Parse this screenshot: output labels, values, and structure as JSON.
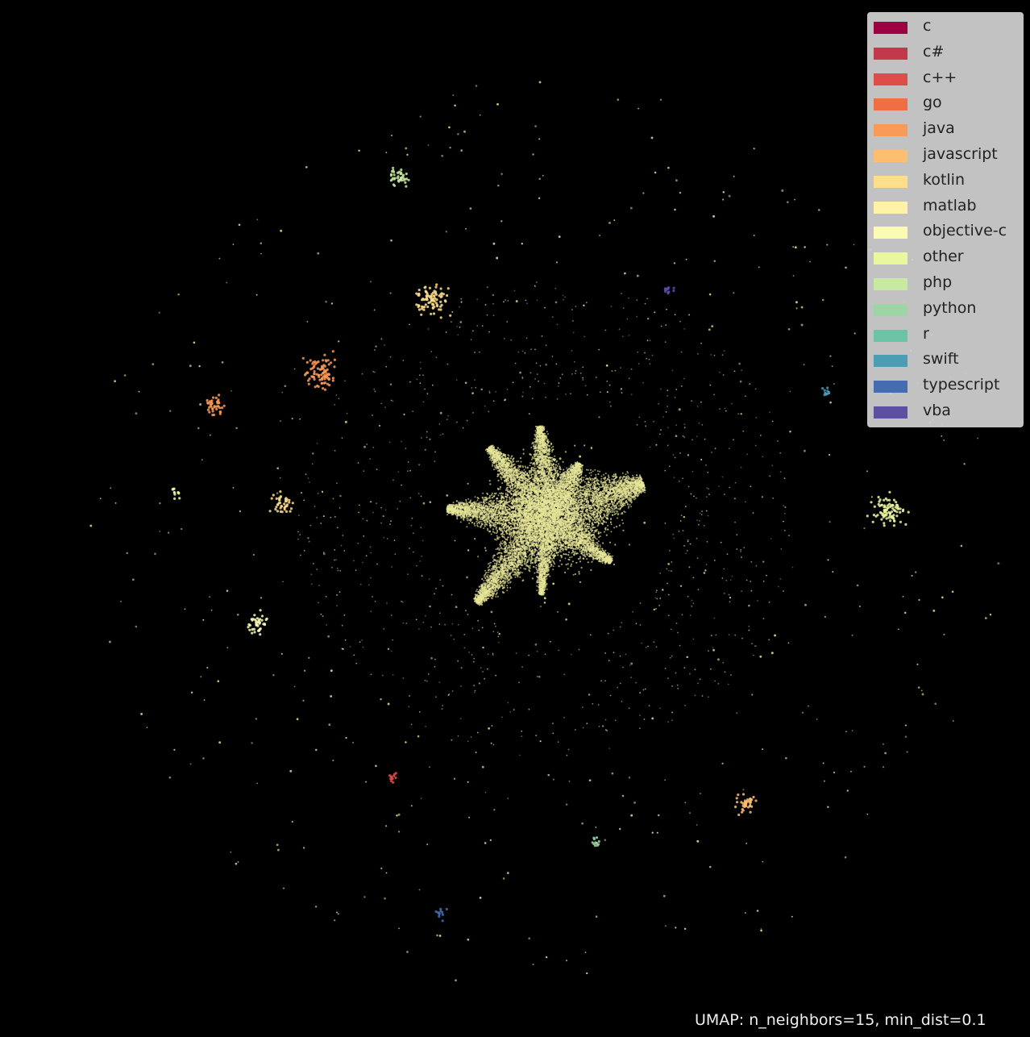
{
  "chart_data": {
    "type": "scatter",
    "projection": "UMAP",
    "annotation": "UMAP: n_neighbors=15, min_dist=0.1",
    "background_color": "#000000",
    "axes_visible": false,
    "grid": false,
    "legend_position": "top-right",
    "legend": [
      {
        "label": "c",
        "color": "#9e0142"
      },
      {
        "label": "c#",
        "color": "#c2394b"
      },
      {
        "label": "c++",
        "color": "#de4d4a"
      },
      {
        "label": "go",
        "color": "#f16e43"
      },
      {
        "label": "java",
        "color": "#f99b58"
      },
      {
        "label": "javascript",
        "color": "#fdbe70"
      },
      {
        "label": "kotlin",
        "color": "#fedd8b"
      },
      {
        "label": "matlab",
        "color": "#fff1a8"
      },
      {
        "label": "objective-c",
        "color": "#fbfbb6"
      },
      {
        "label": "other",
        "color": "#eaf79e"
      },
      {
        "label": "php",
        "color": "#c8e9a0"
      },
      {
        "label": "python",
        "color": "#9dd6a4"
      },
      {
        "label": "r",
        "color": "#6cc3a5"
      },
      {
        "label": "swift",
        "color": "#4a9db4"
      },
      {
        "label": "typescript",
        "color": "#456bb0"
      },
      {
        "label": "vba",
        "color": "#5e4fa2"
      }
    ],
    "x_range": [
      -10,
      10
    ],
    "y_range": [
      -10,
      10
    ],
    "main_cluster": {
      "label": "other",
      "center": [
        0.0,
        0.3
      ],
      "point_density": "very high",
      "lobes": [
        {
          "angle_deg": 95,
          "length": 1.9,
          "width": 0.5
        },
        {
          "angle_deg": 60,
          "length": 1.3,
          "width": 0.45
        },
        {
          "angle_deg": 20,
          "length": 2.1,
          "width": 0.9
        },
        {
          "angle_deg": -35,
          "length": 1.6,
          "width": 0.4
        },
        {
          "angle_deg": -95,
          "length": 1.6,
          "width": 0.3
        },
        {
          "angle_deg": -130,
          "length": 2.3,
          "width": 0.55
        },
        {
          "angle_deg": 175,
          "length": 2.1,
          "width": 0.6
        },
        {
          "angle_deg": 130,
          "length": 1.9,
          "width": 0.5
        }
      ]
    },
    "isolated_clusters": [
      {
        "label": "php",
        "x": -3.1,
        "y": 7.35,
        "size": "small"
      },
      {
        "label": "kotlin",
        "x": -2.4,
        "y": 4.8,
        "size": "medium"
      },
      {
        "label": "java",
        "x": -4.7,
        "y": 3.3,
        "size": "medium"
      },
      {
        "label": "java",
        "x": -6.9,
        "y": 2.65,
        "size": "small"
      },
      {
        "label": "kotlin",
        "x": -5.5,
        "y": 0.6,
        "size": "small"
      },
      {
        "label": "objective-c",
        "x": -6.0,
        "y": -1.9,
        "size": "small"
      },
      {
        "label": "other",
        "x": 7.05,
        "y": 0.45,
        "size": "medium"
      },
      {
        "label": "vba",
        "x": 2.5,
        "y": 5.0,
        "size": "tiny"
      },
      {
        "label": "swift",
        "x": 5.75,
        "y": 2.9,
        "size": "tiny"
      },
      {
        "label": "c++",
        "x": -3.2,
        "y": -5.1,
        "size": "tiny"
      },
      {
        "label": "javascript",
        "x": 4.1,
        "y": -5.6,
        "size": "small"
      },
      {
        "label": "python",
        "x": 1.0,
        "y": -6.4,
        "size": "tiny"
      },
      {
        "label": "typescript",
        "x": -2.2,
        "y": -7.9,
        "size": "tiny"
      },
      {
        "label": "other",
        "x": -7.7,
        "y": 0.8,
        "size": "tiny"
      }
    ]
  }
}
